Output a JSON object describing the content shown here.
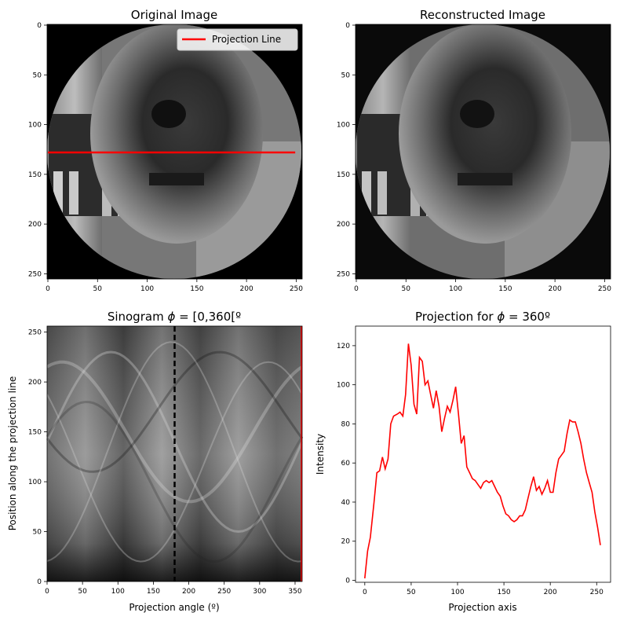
{
  "chart_data": [
    {
      "type": "heatmap",
      "title": "Original Image",
      "xlim": [
        0,
        255
      ],
      "ylim": [
        255,
        0
      ],
      "x_ticks": [
        0,
        50,
        100,
        150,
        200,
        250
      ],
      "y_ticks": [
        0,
        50,
        100,
        150,
        200,
        250
      ],
      "legend": {
        "entries": [
          {
            "name": "Projection Line",
            "color": "#ff0000"
          }
        ],
        "placement": "top-right"
      },
      "projection_line": {
        "y": 128,
        "x": [
          0,
          249
        ],
        "color": "#ff0000"
      }
    },
    {
      "type": "heatmap",
      "title": "Reconstructed Image",
      "xlim": [
        0,
        255
      ],
      "ylim": [
        255,
        0
      ],
      "x_ticks": [
        0,
        50,
        100,
        150,
        200,
        250
      ],
      "y_ticks": [
        0,
        50,
        100,
        150,
        200,
        250
      ]
    },
    {
      "type": "heatmap",
      "title": "Sinogram $\\phi$ = [0,360[º",
      "title_parts": {
        "prefix": "Sinogram ",
        "symbol": "ϕ",
        "suffix": " = [0,360[º"
      },
      "xlabel": "Projection angle (º)",
      "ylabel": "Position along the projection line",
      "xlim": [
        0,
        360
      ],
      "ylim": [
        0,
        256
      ],
      "x_ticks": [
        0,
        50,
        100,
        150,
        200,
        250,
        300,
        350
      ],
      "y_ticks": [
        0,
        50,
        100,
        150,
        200,
        250
      ],
      "dashed_line": {
        "x": 180,
        "color": "#000000"
      },
      "edge_line": {
        "x": 360,
        "color": "#ff0000"
      }
    },
    {
      "type": "line",
      "title": "Projection for $\\phi$ = 360º",
      "title_parts": {
        "prefix": "Projection for ",
        "symbol": "ϕ",
        "suffix": " = 360º"
      },
      "xlabel": "Projection axis",
      "ylabel": "Intensity",
      "xlim": [
        -10,
        265
      ],
      "ylim": [
        -1,
        130
      ],
      "x_ticks": [
        0,
        50,
        100,
        150,
        200,
        250
      ],
      "y_ticks": [
        0,
        20,
        40,
        60,
        80,
        100,
        120
      ],
      "grid": false,
      "series": [
        {
          "color": "#ff0000",
          "x": [
            0,
            3,
            6,
            10,
            13,
            16,
            19,
            22,
            25,
            28,
            31,
            35,
            38,
            41,
            44,
            47,
            50,
            53,
            56,
            59,
            62,
            65,
            68,
            71,
            74,
            77,
            80,
            83,
            86,
            89,
            92,
            95,
            98,
            101,
            104,
            107,
            110,
            113,
            116,
            119,
            122,
            125,
            128,
            131,
            134,
            137,
            140,
            143,
            146,
            149,
            152,
            155,
            158,
            161,
            164,
            167,
            170,
            173,
            176,
            179,
            182,
            185,
            188,
            191,
            194,
            197,
            200,
            203,
            206,
            209,
            212,
            215,
            218,
            221,
            224,
            227,
            230,
            233,
            236,
            239,
            242,
            245,
            248,
            251,
            254
          ],
          "y": [
            1,
            15,
            22,
            40,
            55,
            56,
            63,
            57,
            62,
            80,
            84,
            85,
            86,
            84,
            95,
            121,
            110,
            90,
            85,
            114,
            112,
            100,
            102,
            95,
            88,
            97,
            89,
            76,
            83,
            89,
            86,
            92,
            99,
            85,
            70,
            74,
            58,
            55,
            52,
            51,
            49,
            47,
            50,
            51,
            50,
            51,
            48,
            45,
            43,
            38,
            34,
            33,
            31,
            30,
            31,
            33,
            33,
            36,
            42,
            48,
            53,
            46,
            48,
            44,
            47,
            51,
            45,
            45,
            55,
            62,
            64,
            66,
            75,
            82,
            81,
            81,
            76,
            70,
            62,
            55,
            50,
            45,
            35,
            27,
            18
          ]
        }
      ]
    }
  ]
}
